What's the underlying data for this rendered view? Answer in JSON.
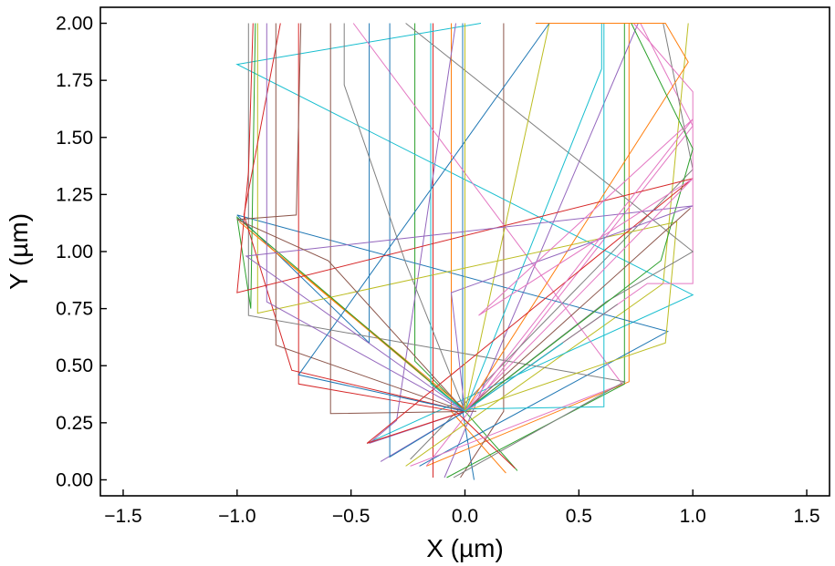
{
  "chart_data": {
    "type": "line",
    "xlabel": "X (µm)",
    "ylabel": "Y (µm)",
    "xlim": [
      -1.6,
      1.6
    ],
    "ylim": [
      -0.07,
      2.07
    ],
    "xticks": [
      -1.5,
      -1.0,
      -0.5,
      0.0,
      0.5,
      1.0,
      1.5
    ],
    "xtick_labels": [
      "−1.5",
      "−1.0",
      "−0.5",
      "0.0",
      "0.5",
      "1.0",
      "1.5"
    ],
    "yticks": [
      0.0,
      0.25,
      0.5,
      0.75,
      1.0,
      1.25,
      1.5,
      1.75,
      2.0
    ],
    "ytick_labels": [
      "0.00",
      "0.25",
      "0.50",
      "0.75",
      "1.00",
      "1.25",
      "1.50",
      "1.75",
      "2.00"
    ],
    "grid": false,
    "legend": "none",
    "colors": [
      "#1f77b4",
      "#ff7f0e",
      "#2ca02c",
      "#d62728",
      "#9467bd",
      "#8c564b",
      "#e377c2",
      "#7f7f7f",
      "#bcbd22",
      "#17becf"
    ],
    "series": [
      {
        "x": [
          0.04,
          -0.01,
          -0.01
        ],
        "y": [
          0.0,
          0.3,
          2.0
        ]
      },
      {
        "x": [
          -0.17,
          0.72,
          0.72
        ],
        "y": [
          0.06,
          0.43,
          2.0
        ]
      },
      {
        "x": [
          0.23,
          0.0,
          -0.22,
          -0.22
        ],
        "y": [
          0.04,
          0.3,
          0.52,
          2.0
        ]
      },
      {
        "x": [
          -0.14,
          -0.14
        ],
        "y": [
          0.01,
          2.0
        ]
      },
      {
        "x": [
          -0.09,
          0.76
        ],
        "y": [
          0.01,
          2.0
        ]
      },
      {
        "x": [
          -0.02,
          0.17,
          0.17
        ],
        "y": [
          0.01,
          0.3,
          2.0
        ]
      },
      {
        "x": [
          -0.17,
          1.0,
          0.77
        ],
        "y": [
          0.06,
          1.55,
          2.0
        ]
      },
      {
        "x": [
          -0.24,
          1.0,
          0.87
        ],
        "y": [
          0.09,
          1.36,
          2.0
        ]
      },
      {
        "x": [
          -0.26,
          0.87,
          0.98
        ],
        "y": [
          0.06,
          0.86,
          2.0
        ]
      },
      {
        "x": [
          -0.43,
          1.0,
          -1.0,
          0.07
        ],
        "y": [
          0.16,
          0.81,
          1.82,
          2.0
        ]
      },
      {
        "x": [
          -0.2,
          0.89,
          -1.0,
          -0.42,
          -0.42
        ],
        "y": [
          0.06,
          0.65,
          1.16,
          0.6,
          2.0
        ]
      },
      {
        "x": [
          0.18,
          -0.06,
          -0.06
        ],
        "y": [
          0.03,
          0.3,
          2.0
        ]
      },
      {
        "x": [
          -0.08,
          0.7,
          0.7
        ],
        "y": [
          0.01,
          0.42,
          2.0
        ]
      },
      {
        "x": [
          0.22,
          -0.04,
          -0.73,
          -0.73
        ],
        "y": [
          0.05,
          0.3,
          0.42,
          2.0
        ]
      },
      {
        "x": [
          -0.37,
          0.0,
          -0.42,
          -0.3,
          -0.04
        ],
        "y": [
          0.08,
          0.3,
          0.16,
          0.26,
          2.0
        ]
      },
      {
        "x": [
          0.0,
          0.05,
          -0.59,
          -0.59
        ],
        "y": [
          0.3,
          0.3,
          0.29,
          2.0
        ]
      },
      {
        "x": [
          -0.24,
          0.69,
          0.69,
          -0.49
        ],
        "y": [
          0.06,
          0.42,
          0.42,
          2.0
        ]
      },
      {
        "x": [
          -0.05,
          0.7,
          -0.95,
          -0.95
        ],
        "y": [
          0.01,
          0.43,
          0.72,
          2.0
        ]
      },
      {
        "x": [
          0.0,
          0.88,
          0.93,
          -0.91,
          -0.91
        ],
        "y": [
          0.3,
          0.6,
          1.13,
          0.73,
          2.0
        ]
      },
      {
        "x": [
          0.0,
          0.61,
          0.61
        ],
        "y": [
          0.31,
          0.32,
          2.0
        ]
      },
      {
        "x": [
          0.0,
          -0.33,
          -0.33
        ],
        "y": [
          0.3,
          0.1,
          2.0
        ]
      },
      {
        "x": [
          0.0,
          -0.99,
          0.0,
          0.0,
          0.0
        ],
        "y": [
          0.3,
          1.13,
          0.31,
          0.3,
          2.0
        ]
      },
      {
        "x": [
          0.0,
          -1.0,
          -0.94,
          -0.92
        ],
        "y": [
          0.3,
          1.15,
          0.75,
          2.0
        ]
      },
      {
        "x": [
          0.0,
          -0.76,
          -0.97,
          -0.81
        ],
        "y": [
          0.3,
          0.48,
          1.16,
          2.0
        ]
      },
      {
        "x": [
          0.0,
          -0.87,
          -0.87
        ],
        "y": [
          0.3,
          0.78,
          2.0
        ]
      },
      {
        "x": [
          0.0,
          -0.83,
          -0.83
        ],
        "y": [
          0.3,
          0.59,
          2.0
        ]
      },
      {
        "x": [
          0.0,
          0.8,
          1.0,
          1.0,
          0.74
        ],
        "y": [
          0.3,
          0.86,
          0.86,
          1.7,
          2.0
        ]
      },
      {
        "x": [
          0.0,
          0.62,
          1.0,
          -0.26
        ],
        "y": [
          0.3,
          0.78,
          1.0,
          2.0
        ]
      },
      {
        "x": [
          0.0,
          0.37,
          0.37
        ],
        "y": [
          0.3,
          2.0,
          2.0
        ]
      },
      {
        "x": [
          0.0,
          0.6,
          0.6
        ],
        "y": [
          0.3,
          1.8,
          2.0
        ]
      },
      {
        "x": [
          0.0,
          -0.73,
          0.37
        ],
        "y": [
          0.3,
          0.46,
          2.0
        ]
      },
      {
        "x": [
          0.0,
          0.98,
          0.88,
          0.31
        ],
        "y": [
          0.3,
          1.83,
          2.0,
          2.0
        ]
      },
      {
        "x": [
          0.0,
          0.86,
          1.0,
          0.73
        ],
        "y": [
          0.3,
          0.96,
          1.45,
          2.0
        ]
      },
      {
        "x": [
          0.0,
          -0.43,
          1.0,
          -1.0,
          -0.95,
          -0.93
        ],
        "y": [
          0.3,
          0.16,
          1.32,
          0.82,
          1.35,
          2.0
        ]
      },
      {
        "x": [
          0.0,
          -0.06,
          1.0,
          -0.96,
          0.0,
          0.0,
          0.0
        ],
        "y": [
          0.3,
          0.82,
          1.2,
          0.98,
          0.3,
          0.3,
          2.0
        ]
      },
      {
        "x": [
          0.0,
          0.99,
          0.0,
          -0.6,
          -1.0,
          -0.74,
          -0.72
        ],
        "y": [
          0.3,
          1.19,
          0.3,
          0.96,
          1.14,
          1.16,
          2.0
        ]
      },
      {
        "x": [
          0.0,
          1.0,
          0.06,
          1.0,
          0.0,
          0.0
        ],
        "y": [
          0.3,
          1.32,
          0.72,
          1.58,
          0.3,
          2.0
        ]
      },
      {
        "x": [
          0.0,
          0.67,
          0.0,
          -0.26,
          -0.53,
          -0.53
        ],
        "y": [
          0.3,
          0.77,
          0.3,
          0.95,
          1.73,
          2.0
        ]
      },
      {
        "x": [
          0.0,
          0.0,
          0.0,
          0.0
        ],
        "y": [
          0.3,
          0.52,
          0.52,
          2.0
        ]
      },
      {
        "x": [
          0.0,
          0.43,
          0.0,
          -0.15,
          -0.15
        ],
        "y": [
          0.3,
          0.6,
          0.3,
          0.42,
          2.0
        ]
      }
    ]
  }
}
